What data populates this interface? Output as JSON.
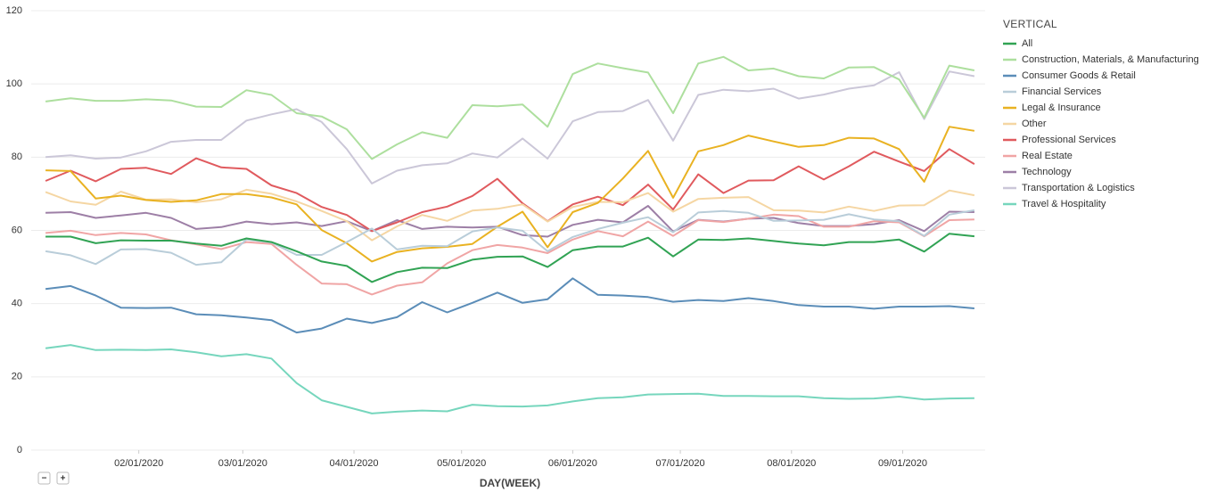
{
  "controls": {
    "zoom_out": "−",
    "zoom_in": "+"
  },
  "chart_data": {
    "type": "line",
    "x_label": "DAY(WEEK)",
    "legend_title": "VERTICAL",
    "legend": "right",
    "grid": true,
    "x": [
      "2020-01-06",
      "2020-01-13",
      "2020-01-20",
      "2020-01-27",
      "2020-02-03",
      "2020-02-10",
      "2020-02-17",
      "2020-02-24",
      "2020-03-02",
      "2020-03-09",
      "2020-03-16",
      "2020-03-23",
      "2020-03-30",
      "2020-04-06",
      "2020-04-13",
      "2020-04-20",
      "2020-04-27",
      "2020-05-04",
      "2020-05-11",
      "2020-05-18",
      "2020-05-25",
      "2020-06-01",
      "2020-06-08",
      "2020-06-15",
      "2020-06-22",
      "2020-06-29",
      "2020-07-06",
      "2020-07-13",
      "2020-07-20",
      "2020-07-27",
      "2020-08-03",
      "2020-08-10",
      "2020-08-17",
      "2020-08-24",
      "2020-08-31",
      "2020-09-07",
      "2020-09-14",
      "2020-09-21"
    ],
    "xlim": [
      "2020-01-02",
      "2020-09-24"
    ],
    "xticks": [
      {
        "value": "2020-02-01",
        "label": "02/01/2020"
      },
      {
        "value": "2020-03-01",
        "label": "03/01/2020"
      },
      {
        "value": "2020-04-01",
        "label": "04/01/2020"
      },
      {
        "value": "2020-05-01",
        "label": "05/01/2020"
      },
      {
        "value": "2020-06-01",
        "label": "06/01/2020"
      },
      {
        "value": "2020-07-01",
        "label": "07/01/2020"
      },
      {
        "value": "2020-08-01",
        "label": "08/01/2020"
      },
      {
        "value": "2020-09-01",
        "label": "09/01/2020"
      }
    ],
    "ylim": [
      0,
      120
    ],
    "yticks": [
      0,
      20,
      40,
      60,
      80,
      100,
      120
    ],
    "series": [
      {
        "name": "All",
        "color": "#31a354",
        "values": [
          58.3,
          58.3,
          56.5,
          57.3,
          57.2,
          57.2,
          56.4,
          55.8,
          57.8,
          56.8,
          54.3,
          51.5,
          50.3,
          45.9,
          48.6,
          49.8,
          49.7,
          52.0,
          52.8,
          52.9,
          50.0,
          54.6,
          55.6,
          55.6,
          58.0,
          52.9,
          57.5,
          57.4,
          57.8,
          57.1,
          56.4,
          55.9,
          56.8,
          56.8,
          57.5,
          54.2,
          59.1,
          58.4
        ]
      },
      {
        "name": "Construction, Materials, & Manufacturing",
        "color": "#addf9e",
        "values": [
          95.2,
          96.1,
          95.4,
          95.4,
          95.8,
          95.5,
          93.8,
          93.7,
          98.3,
          97.0,
          92.0,
          91.1,
          87.6,
          79.5,
          83.5,
          86.8,
          85.3,
          94.2,
          93.9,
          94.4,
          88.3,
          102.7,
          105.6,
          104.3,
          103.1,
          92.0,
          105.6,
          107.4,
          103.7,
          104.2,
          102.1,
          101.5,
          104.5,
          104.6,
          101.2,
          90.8,
          105.0,
          103.7
        ]
      },
      {
        "name": "Consumer Goods & Retail",
        "color": "#5b8db8",
        "values": [
          44.0,
          44.8,
          42.2,
          38.9,
          38.8,
          38.9,
          37.1,
          36.8,
          36.2,
          35.5,
          32.1,
          33.2,
          35.9,
          34.7,
          36.3,
          40.4,
          37.6,
          40.2,
          43.0,
          40.2,
          41.2,
          46.9,
          42.4,
          42.2,
          41.8,
          40.5,
          41.0,
          40.7,
          41.5,
          40.7,
          39.6,
          39.2,
          39.2,
          38.6,
          39.2,
          39.2,
          39.3,
          38.7
        ]
      },
      {
        "name": "Financial Services",
        "color": "#b9cdd9",
        "values": [
          54.3,
          53.2,
          50.8,
          54.8,
          54.9,
          53.9,
          50.6,
          51.3,
          57.5,
          56.7,
          53.3,
          53.3,
          56.8,
          60.5,
          54.8,
          55.8,
          55.7,
          59.7,
          60.8,
          59.9,
          54.3,
          58.2,
          60.4,
          62.1,
          63.6,
          59.5,
          64.9,
          65.3,
          64.8,
          62.6,
          62.7,
          62.9,
          64.4,
          63.0,
          62.5,
          58.5,
          64.3,
          65.5
        ]
      },
      {
        "name": "Legal & Insurance",
        "color": "#e9b222",
        "values": [
          76.4,
          76.2,
          68.7,
          69.5,
          68.3,
          67.8,
          68.2,
          69.9,
          69.9,
          69.0,
          67.1,
          60.1,
          56.5,
          51.5,
          54.1,
          55.1,
          55.5,
          56.3,
          61.0,
          65.1,
          55.4,
          65.0,
          67.5,
          74.2,
          81.7,
          68.9,
          81.6,
          83.3,
          85.9,
          84.3,
          82.8,
          83.3,
          85.3,
          85.1,
          82.2,
          73.3,
          88.3,
          87.2
        ]
      },
      {
        "name": "Other",
        "color": "#f5d6a3",
        "values": [
          70.5,
          67.9,
          67.0,
          70.6,
          68.4,
          68.5,
          67.7,
          68.5,
          71.1,
          70.0,
          67.9,
          65.3,
          62.5,
          57.3,
          61.1,
          64.2,
          62.6,
          65.4,
          65.9,
          67.1,
          62.4,
          66.4,
          67.8,
          67.7,
          70.2,
          65.1,
          68.6,
          68.9,
          69.1,
          65.5,
          65.4,
          64.9,
          66.5,
          65.3,
          66.8,
          66.9,
          70.9,
          69.6
        ]
      },
      {
        "name": "Professional Services",
        "color": "#e05a5e",
        "values": [
          73.5,
          76.3,
          73.4,
          76.8,
          77.1,
          75.4,
          79.7,
          77.2,
          76.8,
          72.3,
          70.2,
          66.4,
          64.2,
          59.8,
          62.2,
          65.0,
          66.5,
          69.4,
          74.1,
          67.4,
          62.5,
          67.1,
          69.2,
          66.9,
          72.5,
          65.7,
          75.3,
          70.2,
          73.6,
          73.7,
          77.5,
          73.9,
          77.5,
          81.5,
          78.8,
          76.2,
          82.2,
          78.1
        ]
      },
      {
        "name": "Real Estate",
        "color": "#f0a5a5",
        "values": [
          59.3,
          59.9,
          58.7,
          59.3,
          58.9,
          57.3,
          56.2,
          54.9,
          56.8,
          56.3,
          50.6,
          45.5,
          45.3,
          42.5,
          44.9,
          45.8,
          51.0,
          54.6,
          56.0,
          55.3,
          53.8,
          57.5,
          59.8,
          58.4,
          62.4,
          58.5,
          62.8,
          62.3,
          63.2,
          64.3,
          63.9,
          61.0,
          61.0,
          62.5,
          62.2,
          58.4,
          62.8,
          63.0
        ]
      },
      {
        "name": "Technology",
        "color": "#9d7fa6",
        "values": [
          64.8,
          65.0,
          63.4,
          64.1,
          64.8,
          63.4,
          60.4,
          60.9,
          62.4,
          61.7,
          62.2,
          61.2,
          62.5,
          59.8,
          62.8,
          60.4,
          61.0,
          60.8,
          61.0,
          58.7,
          58.3,
          61.5,
          62.9,
          62.2,
          66.7,
          59.7,
          62.9,
          62.4,
          63.2,
          63.4,
          62.0,
          61.2,
          61.2,
          61.7,
          62.8,
          59.8,
          65.1,
          65.0
        ]
      },
      {
        "name": "Transportation & Logistics",
        "color": "#cbc7d8",
        "values": [
          80.0,
          80.5,
          79.6,
          79.9,
          81.6,
          84.2,
          84.7,
          84.7,
          90.0,
          91.7,
          93.1,
          89.6,
          82.2,
          72.8,
          76.3,
          77.8,
          78.3,
          81.0,
          79.9,
          85.1,
          79.6,
          89.8,
          92.3,
          92.6,
          95.6,
          84.5,
          97.0,
          98.4,
          98.0,
          98.7,
          96.0,
          97.1,
          98.7,
          99.6,
          103.2,
          90.4,
          103.4,
          102.1
        ]
      },
      {
        "name": "Travel & Hospitality",
        "color": "#76d6bd",
        "values": [
          27.8,
          28.7,
          27.3,
          27.4,
          27.3,
          27.5,
          26.7,
          25.6,
          26.2,
          25.0,
          18.3,
          13.6,
          11.8,
          10.0,
          10.5,
          10.8,
          10.6,
          12.4,
          12.0,
          11.9,
          12.2,
          13.3,
          14.2,
          14.4,
          15.2,
          15.3,
          15.4,
          14.8,
          14.8,
          14.7,
          14.7,
          14.2,
          14.0,
          14.1,
          14.6,
          13.8,
          14.1,
          14.2
        ]
      }
    ]
  }
}
